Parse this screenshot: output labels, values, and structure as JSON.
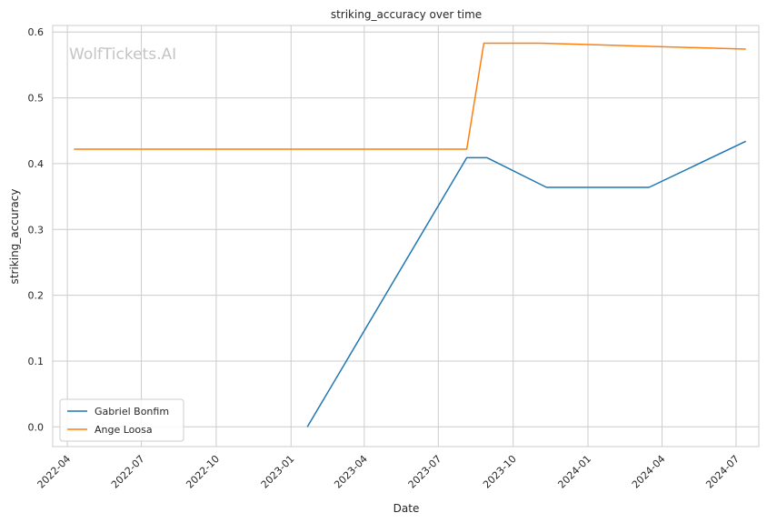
{
  "chart_data": {
    "type": "line",
    "title": "striking_accuracy over time",
    "xlabel": "Date",
    "ylabel": "striking_accuracy",
    "watermark": "WolfTickets.AI",
    "grid": true,
    "legend_position": "lower-left",
    "xlim": [
      "2022-03-14",
      "2024-07-29"
    ],
    "ylim": [
      -0.03,
      0.61
    ],
    "x_ticks": [
      "2022-04",
      "2022-07",
      "2022-10",
      "2023-01",
      "2023-04",
      "2023-07",
      "2023-10",
      "2024-01",
      "2024-04",
      "2024-07"
    ],
    "y_ticks": [
      "0.0",
      "0.1",
      "0.2",
      "0.3",
      "0.4",
      "0.5",
      "0.6"
    ],
    "series": [
      {
        "name": "Gabriel Bonfim",
        "color": "#1f77b4",
        "points": [
          {
            "x": "2023-01-21",
            "y": 0.0
          },
          {
            "x": "2023-08-05",
            "y": 0.409
          },
          {
            "x": "2023-08-30",
            "y": 0.409
          },
          {
            "x": "2023-11-11",
            "y": 0.364
          },
          {
            "x": "2024-03-16",
            "y": 0.364
          },
          {
            "x": "2024-07-13",
            "y": 0.434
          }
        ]
      },
      {
        "name": "Ange Loosa",
        "color": "#ff7f0e",
        "points": [
          {
            "x": "2022-04-09",
            "y": 0.422
          },
          {
            "x": "2023-08-05",
            "y": 0.422
          },
          {
            "x": "2023-08-26",
            "y": 0.583
          },
          {
            "x": "2023-11-04",
            "y": 0.583
          },
          {
            "x": "2024-07-13",
            "y": 0.574
          }
        ]
      }
    ]
  }
}
